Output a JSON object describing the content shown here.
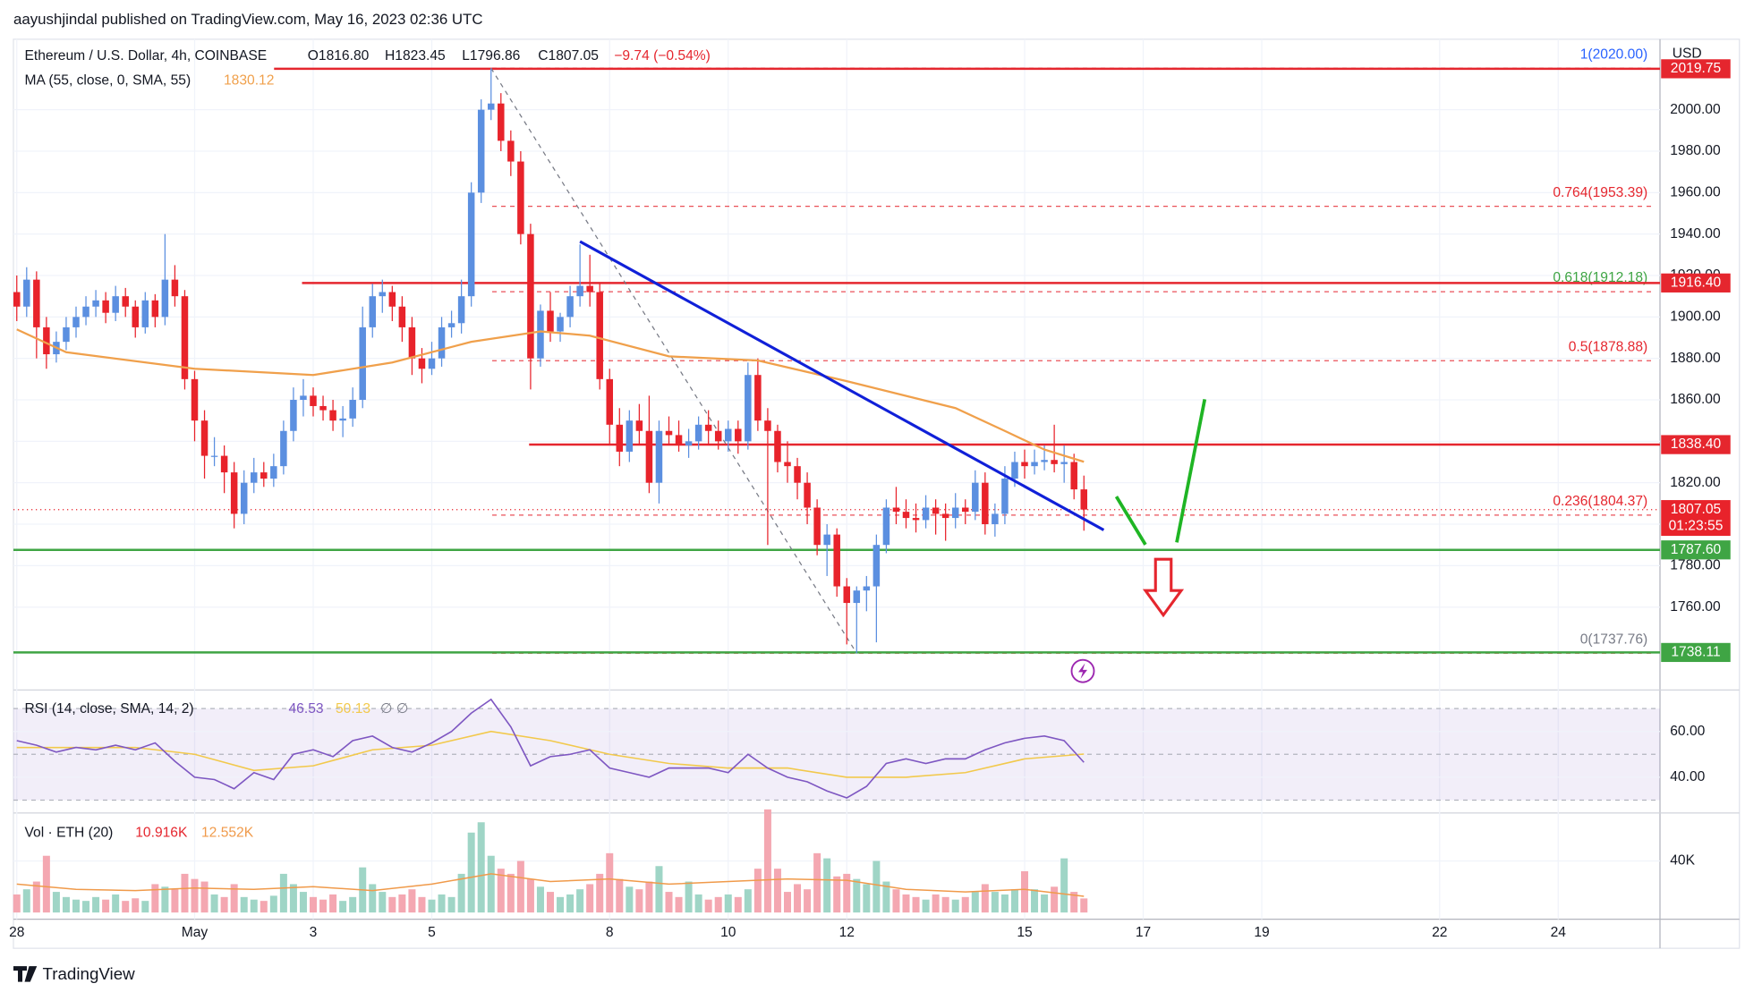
{
  "header": {
    "attribution": "aayushjindal published on TradingView.com, May 16, 2023 02:36 UTC",
    "footer": "TradingView"
  },
  "chart_data": {
    "type": "candlestick",
    "title": "Ethereum / U.S. Dollar, 4h, COINBASE",
    "quote": [
      "O1816.80",
      "H1823.45",
      "L1796.86",
      "C1807.05",
      "−9.74 (−0.54%)"
    ],
    "currency": "USD",
    "up_color": "#5b8fe0",
    "down_color": "#e8232b",
    "candles": [
      [
        1912,
        1920,
        1898,
        1905
      ],
      [
        1905,
        1924,
        1900,
        1918
      ],
      [
        1918,
        1922,
        1880,
        1895
      ],
      [
        1895,
        1900,
        1875,
        1882
      ],
      [
        1882,
        1893,
        1878,
        1888
      ],
      [
        1888,
        1900,
        1884,
        1895
      ],
      [
        1895,
        1905,
        1890,
        1900
      ],
      [
        1900,
        1910,
        1896,
        1905
      ],
      [
        1905,
        1913,
        1900,
        1908
      ],
      [
        1908,
        1912,
        1897,
        1902
      ],
      [
        1902,
        1915,
        1898,
        1910
      ],
      [
        1910,
        1914,
        1900,
        1905
      ],
      [
        1905,
        1908,
        1890,
        1895
      ],
      [
        1895,
        1912,
        1892,
        1908
      ],
      [
        1908,
        1911,
        1895,
        1900
      ],
      [
        1900,
        1940,
        1896,
        1918
      ],
      [
        1918,
        1925,
        1905,
        1910
      ],
      [
        1910,
        1913,
        1865,
        1870
      ],
      [
        1870,
        1874,
        1840,
        1850
      ],
      [
        1850,
        1855,
        1822,
        1833
      ],
      [
        1833,
        1842,
        1828,
        1833
      ],
      [
        1833,
        1838,
        1815,
        1825
      ],
      [
        1825,
        1830,
        1798,
        1805
      ],
      [
        1805,
        1826,
        1800,
        1820
      ],
      [
        1820,
        1832,
        1815,
        1825
      ],
      [
        1825,
        1830,
        1818,
        1822
      ],
      [
        1822,
        1834,
        1818,
        1828
      ],
      [
        1828,
        1850,
        1824,
        1845
      ],
      [
        1845,
        1866,
        1840,
        1860
      ],
      [
        1860,
        1870,
        1852,
        1862
      ],
      [
        1862,
        1866,
        1852,
        1857
      ],
      [
        1857,
        1862,
        1850,
        1855
      ],
      [
        1855,
        1860,
        1845,
        1850
      ],
      [
        1850,
        1857,
        1842,
        1851
      ],
      [
        1851,
        1866,
        1847,
        1860
      ],
      [
        1860,
        1905,
        1856,
        1895
      ],
      [
        1895,
        1916,
        1890,
        1910
      ],
      [
        1910,
        1918,
        1902,
        1912
      ],
      [
        1912,
        1915,
        1898,
        1905
      ],
      [
        1905,
        1910,
        1888,
        1895
      ],
      [
        1895,
        1900,
        1872,
        1880
      ],
      [
        1880,
        1885,
        1868,
        1875
      ],
      [
        1875,
        1888,
        1872,
        1880
      ],
      [
        1880,
        1900,
        1876,
        1895
      ],
      [
        1895,
        1903,
        1890,
        1897
      ],
      [
        1897,
        1918,
        1892,
        1910
      ],
      [
        1910,
        1965,
        1905,
        1960
      ],
      [
        1960,
        2005,
        1955,
        2000
      ],
      [
        2000,
        2020,
        1995,
        2003
      ],
      [
        2003,
        2008,
        1980,
        1985
      ],
      [
        1985,
        1990,
        1968,
        1975
      ],
      [
        1975,
        1980,
        1935,
        1940
      ],
      [
        1940,
        1945,
        1865,
        1880
      ],
      [
        1880,
        1906,
        1876,
        1903
      ],
      [
        1903,
        1912,
        1888,
        1893
      ],
      [
        1893,
        1902,
        1888,
        1900
      ],
      [
        1900,
        1915,
        1895,
        1910
      ],
      [
        1910,
        1935,
        1905,
        1915
      ],
      [
        1915,
        1930,
        1905,
        1912
      ],
      [
        1912,
        1916,
        1865,
        1870
      ],
      [
        1870,
        1875,
        1838,
        1848
      ],
      [
        1848,
        1856,
        1828,
        1835
      ],
      [
        1835,
        1855,
        1830,
        1850
      ],
      [
        1850,
        1858,
        1838,
        1845
      ],
      [
        1845,
        1862,
        1815,
        1820
      ],
      [
        1820,
        1850,
        1810,
        1845
      ],
      [
        1845,
        1852,
        1838,
        1843
      ],
      [
        1843,
        1850,
        1835,
        1838
      ],
      [
        1838,
        1846,
        1832,
        1840
      ],
      [
        1840,
        1852,
        1836,
        1848
      ],
      [
        1848,
        1855,
        1838,
        1845
      ],
      [
        1845,
        1850,
        1836,
        1840
      ],
      [
        1840,
        1850,
        1835,
        1846
      ],
      [
        1846,
        1850,
        1834,
        1840
      ],
      [
        1840,
        1878,
        1836,
        1872
      ],
      [
        1872,
        1880,
        1845,
        1850
      ],
      [
        1850,
        1856,
        1790,
        1845
      ],
      [
        1845,
        1848,
        1825,
        1830
      ],
      [
        1830,
        1840,
        1820,
        1828
      ],
      [
        1828,
        1832,
        1812,
        1820
      ],
      [
        1820,
        1825,
        1800,
        1808
      ],
      [
        1808,
        1812,
        1785,
        1790
      ],
      [
        1790,
        1800,
        1775,
        1795
      ],
      [
        1795,
        1798,
        1765,
        1770
      ],
      [
        1770,
        1774,
        1742,
        1762
      ],
      [
        1762,
        1770,
        1737.76,
        1768
      ],
      [
        1768,
        1775,
        1758,
        1770
      ],
      [
        1770,
        1795,
        1743,
        1790
      ],
      [
        1790,
        1812,
        1786,
        1808
      ],
      [
        1808,
        1818,
        1800,
        1806
      ],
      [
        1806,
        1812,
        1798,
        1803
      ],
      [
        1803,
        1810,
        1796,
        1802
      ],
      [
        1802,
        1814,
        1798,
        1808
      ],
      [
        1808,
        1812,
        1795,
        1805
      ],
      [
        1805,
        1810,
        1792,
        1803
      ],
      [
        1803,
        1815,
        1798,
        1808
      ],
      [
        1808,
        1812,
        1800,
        1806
      ],
      [
        1806,
        1826,
        1802,
        1820
      ],
      [
        1820,
        1825,
        1795,
        1800
      ],
      [
        1800,
        1810,
        1794,
        1805
      ],
      [
        1805,
        1828,
        1800,
        1822
      ],
      [
        1822,
        1835,
        1818,
        1830
      ],
      [
        1830,
        1836,
        1822,
        1828
      ],
      [
        1828,
        1836,
        1824,
        1830
      ],
      [
        1830,
        1838,
        1826,
        1831
      ],
      [
        1831,
        1848,
        1825,
        1829
      ],
      [
        1829,
        1838,
        1820,
        1830
      ],
      [
        1830,
        1834,
        1812,
        1816.8
      ],
      [
        1816.8,
        1823.45,
        1796.86,
        1807.05
      ]
    ],
    "xticks": [
      {
        "value": 0,
        "label": "28"
      },
      {
        "value": 18,
        "label": "May"
      },
      {
        "value": 30,
        "label": "3"
      },
      {
        "value": 42,
        "label": "5"
      },
      {
        "value": 60,
        "label": "8"
      },
      {
        "value": 72,
        "label": "10"
      },
      {
        "value": 84,
        "label": "12"
      },
      {
        "value": 102,
        "label": "15"
      },
      {
        "value": 114,
        "label": "17"
      },
      {
        "value": 126,
        "label": "19"
      },
      {
        "value": 144,
        "label": "22"
      },
      {
        "value": 156,
        "label": "24"
      }
    ],
    "ylim": [
      1720,
      2034
    ],
    "yticks": [
      {
        "value": 1760,
        "label": "1760.00"
      },
      {
        "value": 1780,
        "label": "1780.00"
      },
      {
        "value": 1800,
        "label": "1800.00"
      },
      {
        "value": 1820,
        "label": "1820.00"
      },
      {
        "value": 1840,
        "label": "1840.00"
      },
      {
        "value": 1860,
        "label": "1860.00"
      },
      {
        "value": 1880,
        "label": "1880.00"
      },
      {
        "value": 1900,
        "label": "1900.00"
      },
      {
        "value": 1920,
        "label": "1920.00"
      },
      {
        "value": 1940,
        "label": "1940.00"
      },
      {
        "value": 1960,
        "label": "1960.00"
      },
      {
        "value": 1980,
        "label": "1980.00"
      },
      {
        "value": 2000,
        "label": "2000.00"
      }
    ],
    "grid": true,
    "ma": {
      "label": "MA (55, close, 0, SMA, 55)",
      "value_label": "1830.12",
      "color": "#f0a04b",
      "x": [
        0,
        5,
        18,
        30,
        38,
        46,
        53,
        58,
        66,
        75,
        84,
        95,
        100,
        104,
        108
      ],
      "values": [
        1894,
        1883,
        1875,
        1872,
        1878,
        1888,
        1893,
        1891,
        1881,
        1879,
        1869,
        1856,
        1845,
        1836,
        1830.12
      ]
    },
    "levels": [
      {
        "value": 2019.75,
        "label": "2019.75",
        "color": "#e5262e"
      },
      {
        "value": 1916.4,
        "label": "1916.40",
        "color": "#e5262e"
      },
      {
        "value": 1838.4,
        "label": "1838.40",
        "color": "#e5262e"
      },
      {
        "value": 1787.6,
        "label": "1787.60",
        "color": "#3fa544"
      },
      {
        "value": 1738.11,
        "label": "1738.11",
        "color": "#3fa544"
      }
    ],
    "fib": [
      {
        "value": 2020,
        "label": "1(2020.00)",
        "color": "#2962ff"
      },
      {
        "value": 1953.39,
        "label": "0.764(1953.39)",
        "color": "#e5262e"
      },
      {
        "value": 1912.18,
        "label": "0.618(1912.18)",
        "color": "#3fa544"
      },
      {
        "value": 1878.88,
        "label": "0.5(1878.88)",
        "color": "#e5262e"
      },
      {
        "value": 1804.37,
        "label": "0.236(1804.37)",
        "color": "#e5262e"
      },
      {
        "value": 1737.76,
        "label": "0(1737.76)",
        "color": "#787b86"
      }
    ],
    "last_price": {
      "value": 1807.05,
      "label": "1807.05",
      "countdown": "01:23:55"
    },
    "trendline": {
      "color": "#1020d8",
      "x": [
        57,
        110
      ],
      "values": [
        1936.4,
        1797.2
      ]
    },
    "fib_diagonal": {
      "x": [
        48,
        85
      ],
      "values": [
        2020,
        1737.76
      ]
    },
    "rsi": {
      "label": "RSI (14, close, SMA, 14, 2)",
      "value_label": "46.53",
      "ma_label": "50.13",
      "extra": "∅ ∅",
      "color": "#7e57c2",
      "ma_color": "#f2c94c",
      "ylim": [
        24.4,
        77.6
      ],
      "yticks": [
        {
          "value": 60,
          "label": "60.00"
        },
        {
          "value": 40,
          "label": "40.00"
        }
      ],
      "band": [
        30,
        70
      ],
      "hlines": [
        70,
        50,
        30
      ],
      "x": [
        0,
        2,
        4,
        6,
        8,
        10,
        12,
        14,
        16,
        18,
        20,
        22,
        24,
        26,
        28,
        30,
        32,
        34,
        36,
        38,
        40,
        42,
        44,
        46,
        48,
        50,
        52,
        54,
        56,
        58,
        60,
        62,
        64,
        66,
        68,
        70,
        72,
        74,
        76,
        78,
        80,
        82,
        84,
        86,
        88,
        90,
        92,
        94,
        96,
        98,
        100,
        102,
        104,
        106,
        108
      ],
      "values": [
        56,
        54,
        51,
        53,
        52,
        54,
        52,
        55,
        47,
        40,
        39,
        35,
        42,
        39,
        50,
        52,
        49,
        56,
        58,
        53,
        51,
        55,
        60,
        68,
        74,
        62,
        45,
        49,
        50,
        52,
        44,
        42,
        40,
        44,
        44,
        44,
        42,
        50,
        44,
        40,
        38,
        34,
        31,
        36,
        46,
        48,
        46,
        48,
        48,
        52,
        55,
        57,
        58,
        56,
        46.53
      ],
      "ma_x": [
        0,
        6,
        12,
        18,
        24,
        30,
        36,
        42,
        48,
        54,
        60,
        66,
        72,
        78,
        84,
        90,
        96,
        102,
        108
      ],
      "ma_values": [
        53,
        53,
        53,
        50,
        43,
        45,
        52,
        54,
        60,
        56,
        50,
        46,
        44,
        44,
        40,
        40,
        42,
        48,
        50.13
      ]
    },
    "volume": {
      "label": "Vol · ETH (20)",
      "value_label": "10.916K",
      "ma_label": "12.552K",
      "up_color": "#9fd5c6",
      "down_color": "#f4a7b1",
      "ma_color": "#f09a4a",
      "ylim": [
        0,
        72000
      ],
      "yticks": [
        {
          "value": 40000,
          "label": "40K"
        }
      ],
      "values": [
        14000,
        18000,
        24000,
        44000,
        16000,
        12000,
        10000,
        9000,
        12000,
        10000,
        14000,
        9000,
        11000,
        9000,
        22000,
        20000,
        18000,
        30000,
        26000,
        24000,
        14000,
        12000,
        22000,
        12000,
        10000,
        9000,
        13000,
        30000,
        22000,
        16000,
        12000,
        10000,
        14000,
        9000,
        12000,
        35000,
        22000,
        16000,
        12000,
        14000,
        18000,
        12000,
        10000,
        14000,
        12000,
        30000,
        62000,
        70000,
        44000,
        34000,
        30000,
        40000,
        26000,
        20000,
        16000,
        12000,
        14000,
        18000,
        22000,
        30000,
        46000,
        26000,
        20000,
        18000,
        24000,
        36000,
        16000,
        12000,
        24000,
        14000,
        10000,
        12000,
        14000,
        12000,
        18000,
        34000,
        80000,
        34000,
        16000,
        22000,
        18000,
        46000,
        42000,
        28000,
        30000,
        26000,
        22000,
        40000,
        24000,
        18000,
        14000,
        12000,
        10000,
        14000,
        12000,
        10000,
        12000,
        16000,
        22000,
        16000,
        14000,
        18000,
        32000,
        18000,
        14000,
        20000,
        42000,
        16000,
        10916
      ],
      "ma_x": [
        0,
        6,
        12,
        18,
        24,
        30,
        36,
        42,
        48,
        54,
        60,
        66,
        72,
        78,
        84,
        90,
        96,
        102,
        108
      ],
      "ma_values": [
        22000,
        18000,
        17000,
        19000,
        18000,
        20000,
        17000,
        22000,
        30000,
        24000,
        26000,
        22000,
        24000,
        26000,
        25000,
        18000,
        16000,
        18000,
        12552
      ]
    }
  }
}
